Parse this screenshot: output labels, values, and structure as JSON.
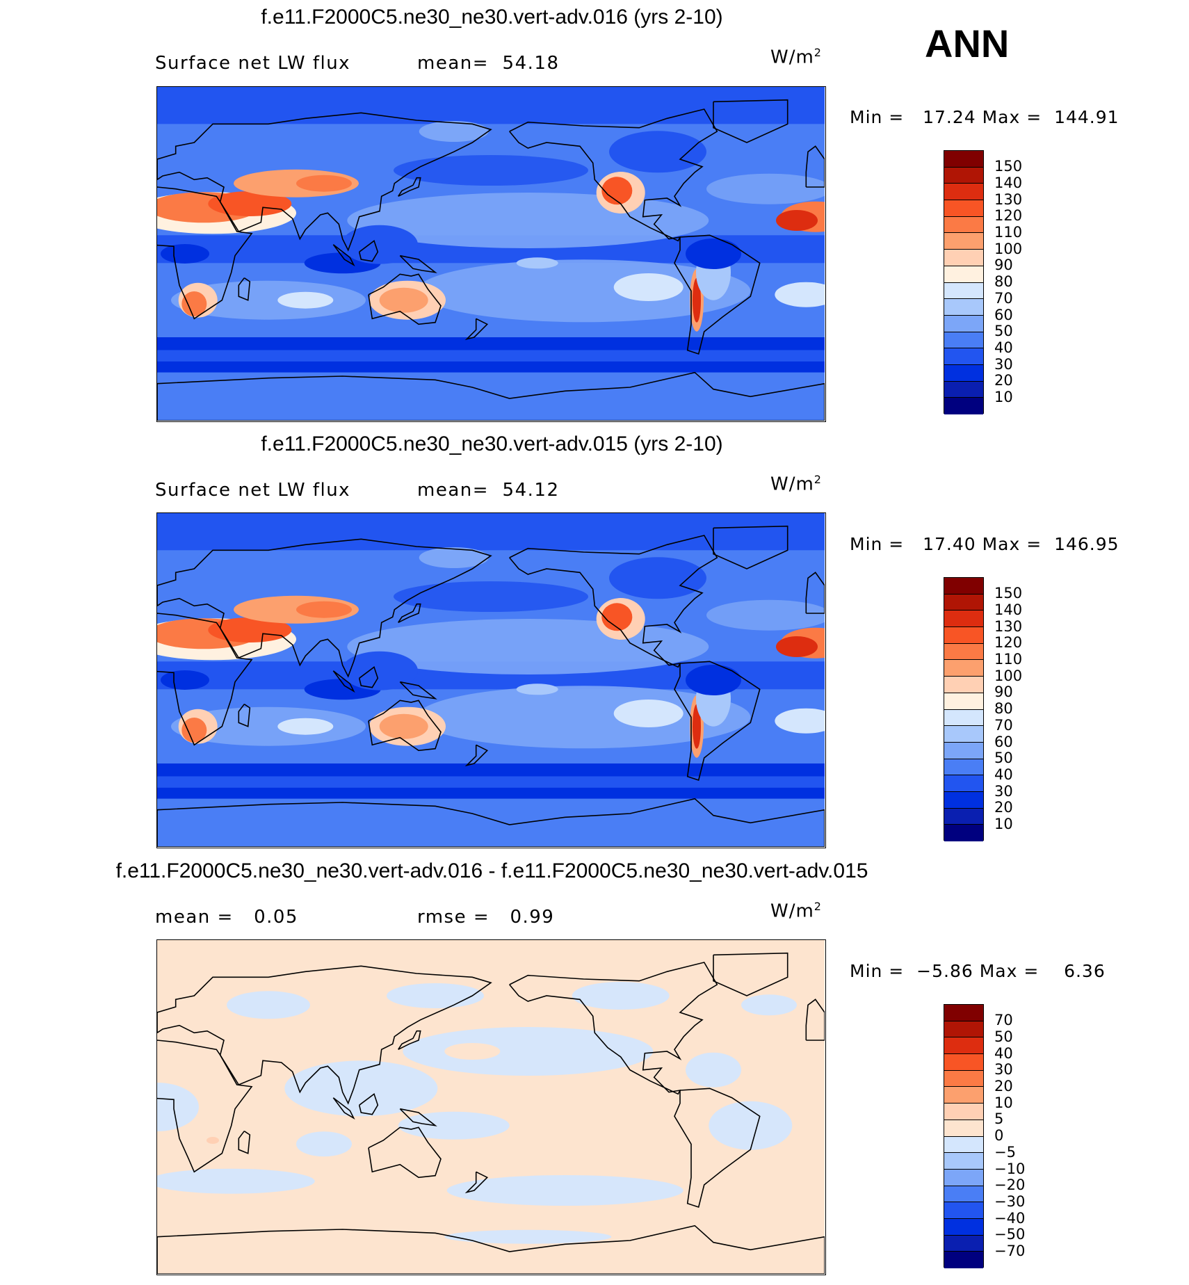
{
  "season": "ANN",
  "colors": {
    "abs": [
      "#00007f",
      "#0a1fb0",
      "#0030e0",
      "#2255f0",
      "#4a7ef5",
      "#7ca6f8",
      "#a8c8fb",
      "#d4e6fd",
      "#fff1e0",
      "#ffd0b4",
      "#fca06e",
      "#fb7a45",
      "#f85525",
      "#dd2d10",
      "#b01505",
      "#800000"
    ],
    "diff": [
      "#00007f",
      "#0a1fb0",
      "#0030e0",
      "#2255f0",
      "#4a7ef5",
      "#7ca6f8",
      "#a8c8fb",
      "#d4e6fd",
      "#fde4cf",
      "#ffd0b4",
      "#fca06e",
      "#fb7a45",
      "#f85525",
      "#dd2d10",
      "#b01505",
      "#800000"
    ]
  },
  "panels": [
    {
      "title": "f.e11.F2000C5.ne30_ne30.vert-adv.016 (yrs 2-10)",
      "left_label": "Surface net LW flux",
      "right_label": "mean=  54.18",
      "units": "W/m",
      "units_sup": "2",
      "minmax": "Min =   17.24 Max =  144.91",
      "min": 17.24,
      "max": 144.91,
      "mean": 54.18,
      "levels": [
        "150",
        "140",
        "130",
        "120",
        "110",
        "100",
        "90",
        "80",
        "70",
        "60",
        "50",
        "40",
        "30",
        "20",
        "10"
      ]
    },
    {
      "title": "f.e11.F2000C5.ne30_ne30.vert-adv.015 (yrs 2-10)",
      "left_label": "Surface net LW flux",
      "right_label": "mean=  54.12",
      "units": "W/m",
      "units_sup": "2",
      "minmax": "Min =   17.40 Max =  146.95",
      "min": 17.4,
      "max": 146.95,
      "mean": 54.12,
      "levels": [
        "150",
        "140",
        "130",
        "120",
        "110",
        "100",
        "90",
        "80",
        "70",
        "60",
        "50",
        "40",
        "30",
        "20",
        "10"
      ]
    },
    {
      "title": "f.e11.F2000C5.ne30_ne30.vert-adv.016 - f.e11.F2000C5.ne30_ne30.vert-adv.015",
      "left_label": "mean =   0.05",
      "right_label": "rmse =   0.99",
      "units": "W/m",
      "units_sup": "2",
      "minmax": "Min =  −5.86 Max =    6.36",
      "min": -5.86,
      "max": 6.36,
      "mean": 0.05,
      "rmse": 0.99,
      "levels": [
        "70",
        "50",
        "40",
        "30",
        "20",
        "10",
        "5",
        "0",
        "−5",
        "−10",
        "−20",
        "−30",
        "−40",
        "−50",
        "−70"
      ]
    }
  ]
}
